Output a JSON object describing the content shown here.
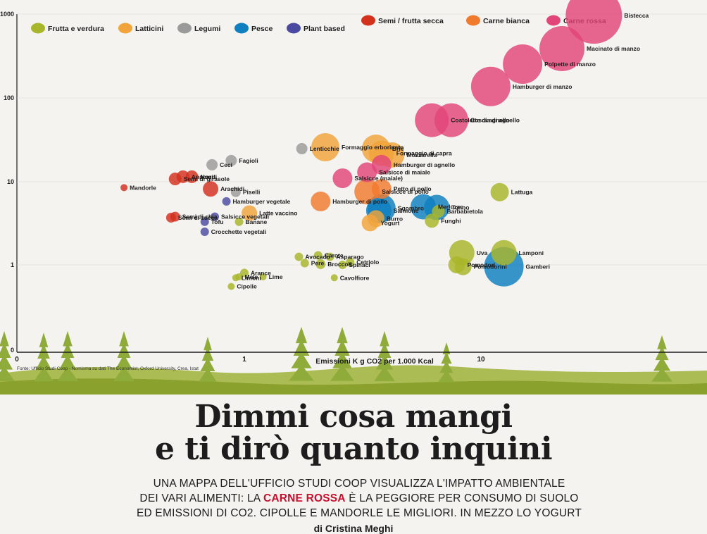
{
  "chart_data": {
    "type": "scatter",
    "title": "",
    "xlabel": "Emissioni K g CO2 per 1.000 Kcal",
    "ylabel": "",
    "xscale": "log",
    "yscale": "log",
    "x_ticks": [
      "0",
      "1",
      "10"
    ],
    "y_ticks": [
      "0",
      "1",
      "10",
      "100",
      "1000"
    ],
    "source": "Fonte: Ufficio Studi Coop - Nomisma su dati The Economist, Oxford University, Crea, Istat",
    "legend_position": "top",
    "categories": [
      {
        "id": "frutta",
        "name": "Frutta e verdura",
        "color": "#a8b62a"
      },
      {
        "id": "latticini",
        "name": "Latticini",
        "color": "#f0a43a"
      },
      {
        "id": "legumi",
        "name": "Legumi",
        "color": "#9a9a9a"
      },
      {
        "id": "pesce",
        "name": "Pesce",
        "color": "#0e7fbf"
      },
      {
        "id": "plant",
        "name": "Plant based",
        "color": "#4a4aa0"
      },
      {
        "id": "semi",
        "name": "Semi / frutta secca",
        "color": "#d3301e"
      },
      {
        "id": "bianca",
        "name": "Carne bianca",
        "color": "#f07a2e"
      },
      {
        "id": "rossa",
        "name": "Carne rossa",
        "color": "#e2457a"
      }
    ],
    "points": [
      {
        "label": "Bistecca",
        "cat": "rossa",
        "x": 30,
        "y": 1000,
        "size": 40
      },
      {
        "label": "Macinato di manzo",
        "cat": "rossa",
        "x": 22,
        "y": 400,
        "size": 32
      },
      {
        "label": "Polpette di manzo",
        "cat": "rossa",
        "x": 15,
        "y": 260,
        "size": 28
      },
      {
        "label": "Hamburger di manzo",
        "cat": "rossa",
        "x": 11,
        "y": 140,
        "size": 28
      },
      {
        "label": "Coscia di agnello",
        "cat": "rossa",
        "x": 7.5,
        "y": 55,
        "size": 24
      },
      {
        "label": "Costolette di agnello",
        "cat": "rossa",
        "x": 6.2,
        "y": 55,
        "size": 24
      },
      {
        "label": "Hamburger di agnello",
        "cat": "rossa",
        "x": 3.8,
        "y": 16,
        "size": 14
      },
      {
        "label": "Salsicce di maiale",
        "cat": "rossa",
        "x": 3.3,
        "y": 13,
        "size": 14
      },
      {
        "label": "Salsicce (maiale)",
        "cat": "rossa",
        "x": 2.6,
        "y": 11,
        "size": 14
      },
      {
        "label": "Formaggio erborinato",
        "cat": "latticini",
        "x": 2.2,
        "y": 26,
        "size": 20
      },
      {
        "label": "Brie",
        "cat": "latticini",
        "x": 3.6,
        "y": 25,
        "size": 20
      },
      {
        "label": "Formaggio di capra",
        "cat": "latticini",
        "x": 3.8,
        "y": 22,
        "size": 18
      },
      {
        "label": "Mozzarella",
        "cat": "latticini",
        "x": 4.2,
        "y": 21,
        "size": 18
      },
      {
        "label": "Latte vaccino",
        "cat": "latticini",
        "x": 1.05,
        "y": 4.2,
        "size": 11
      },
      {
        "label": "Yogurt",
        "cat": "latticini",
        "x": 3.4,
        "y": 3.2,
        "size": 12
      },
      {
        "label": "Burro",
        "cat": "latticini",
        "x": 3.6,
        "y": 3.6,
        "size": 12
      },
      {
        "label": "Salsicce di pollo",
        "cat": "bianca",
        "x": 3.3,
        "y": 7.6,
        "size": 18
      },
      {
        "label": "Petto di pollo",
        "cat": "bianca",
        "x": 3.8,
        "y": 8.2,
        "size": 14
      },
      {
        "label": "Hamburger di pollo",
        "cat": "bianca",
        "x": 2.1,
        "y": 5.8,
        "size": 14
      },
      {
        "label": "Sgombro",
        "cat": "pesce",
        "x": 3.8,
        "y": 4.8,
        "size": 20
      },
      {
        "label": "Salmone",
        "cat": "pesce",
        "x": 3.7,
        "y": 4.5,
        "size": 18
      },
      {
        "label": "Merluzzo",
        "cat": "pesce",
        "x": 5.7,
        "y": 5.0,
        "size": 18
      },
      {
        "label": "Tonno",
        "cat": "pesce",
        "x": 6.5,
        "y": 4.9,
        "size": 18
      },
      {
        "label": "Gamberi",
        "cat": "pesce",
        "x": 12.5,
        "y": 0.95,
        "size": 28
      },
      {
        "label": "Lenticchie",
        "cat": "legumi",
        "x": 1.75,
        "y": 25,
        "size": 8
      },
      {
        "label": "Ceci",
        "cat": "legumi",
        "x": 0.73,
        "y": 16,
        "size": 8
      },
      {
        "label": "Fagioli",
        "cat": "legumi",
        "x": 0.88,
        "y": 18,
        "size": 8
      },
      {
        "label": "Piselli",
        "cat": "legumi",
        "x": 0.92,
        "y": 7.5,
        "size": 7
      },
      {
        "label": "Hamburger vegetale",
        "cat": "plant",
        "x": 0.84,
        "y": 5.8,
        "size": 6
      },
      {
        "label": "Salsicce vegetali",
        "cat": "plant",
        "x": 0.75,
        "y": 3.8,
        "size": 6
      },
      {
        "label": "Tofu",
        "cat": "plant",
        "x": 0.68,
        "y": 3.3,
        "size": 6
      },
      {
        "label": "Crocchette vegetali",
        "cat": "plant",
        "x": 0.68,
        "y": 2.5,
        "size": 6
      },
      {
        "label": "Anacardi",
        "cat": "semi",
        "x": 0.55,
        "y": 11.5,
        "size": 9
      },
      {
        "label": "Noci",
        "cat": "semi",
        "x": 0.6,
        "y": 11.5,
        "size": 9
      },
      {
        "label": "Semi di girasole",
        "cat": "semi",
        "x": 0.51,
        "y": 10.8,
        "size": 9
      },
      {
        "label": "Arachidi",
        "cat": "semi",
        "x": 0.72,
        "y": 8.2,
        "size": 11
      },
      {
        "label": "Semi di chia",
        "cat": "semi",
        "x": 0.51,
        "y": 3.8,
        "size": 7
      },
      {
        "label": "Semi di zucca",
        "cat": "semi",
        "x": 0.49,
        "y": 3.7,
        "size": 7
      },
      {
        "label": "Mandorle",
        "cat": "semi",
        "x": 0.31,
        "y": 8.5,
        "size": 5
      },
      {
        "label": "Lattuga",
        "cat": "frutta",
        "x": 12,
        "y": 7.5,
        "size": 13
      },
      {
        "label": "Funghi",
        "cat": "frutta",
        "x": 6.2,
        "y": 3.4,
        "size": 10
      },
      {
        "label": "Barbabietola",
        "cat": "frutta",
        "x": 6.6,
        "y": 4.4,
        "size": 9
      },
      {
        "label": "Uva",
        "cat": "frutta",
        "x": 8.3,
        "y": 1.4,
        "size": 18
      },
      {
        "label": "Lamponi",
        "cat": "frutta",
        "x": 12.5,
        "y": 1.4,
        "size": 18
      },
      {
        "label": "Pomodori",
        "cat": "frutta",
        "x": 7.9,
        "y": 1.0,
        "size": 12
      },
      {
        "label": "Pomodorini",
        "cat": "frutta",
        "x": 8.4,
        "y": 0.95,
        "size": 12
      },
      {
        "label": "Banane",
        "cat": "frutta",
        "x": 0.95,
        "y": 3.3,
        "size": 6
      },
      {
        "label": "Avocado",
        "cat": "frutta",
        "x": 1.7,
        "y": 1.25,
        "size": 6
      },
      {
        "label": "Carote",
        "cat": "frutta",
        "x": 2.05,
        "y": 1.3,
        "size": 6
      },
      {
        "label": "Asparago",
        "cat": "frutta",
        "x": 2.3,
        "y": 1.25,
        "size": 6
      },
      {
        "label": "Pere",
        "cat": "frutta",
        "x": 1.8,
        "y": 1.05,
        "size": 6
      },
      {
        "label": "Broccoli",
        "cat": "frutta",
        "x": 2.1,
        "y": 1.02,
        "size": 7
      },
      {
        "label": "Spinaci",
        "cat": "frutta",
        "x": 2.6,
        "y": 1.0,
        "size": 6
      },
      {
        "label": "Cetriolo",
        "cat": "frutta",
        "x": 2.8,
        "y": 1.08,
        "size": 6
      },
      {
        "label": "Cavolfiore",
        "cat": "frutta",
        "x": 2.4,
        "y": 0.7,
        "size": 5
      },
      {
        "label": "Arance",
        "cat": "frutta",
        "x": 1.0,
        "y": 0.8,
        "size": 6
      },
      {
        "label": "Mele",
        "cat": "frutta",
        "x": 0.95,
        "y": 0.72,
        "size": 5
      },
      {
        "label": "Limoni",
        "cat": "frutta",
        "x": 0.92,
        "y": 0.7,
        "size": 5
      },
      {
        "label": "Lime",
        "cat": "frutta",
        "x": 1.2,
        "y": 0.72,
        "size": 5
      },
      {
        "label": "Cipolle",
        "cat": "frutta",
        "x": 0.88,
        "y": 0.55,
        "size": 5
      }
    ]
  },
  "article": {
    "headline_1": "Dimmi cosa mangi",
    "headline_2": "e ti dirò quanto inquini",
    "sub_1": "UNA MAPPA DELL'UFFICIO STUDI COOP VISUALIZZA L'IMPATTO AMBIENTALE",
    "sub_2_pre": "DEI VARI ALIMENTI: LA ",
    "sub_2_red": "CARNE ROSSA",
    "sub_2_post": " È LA PEGGIORE PER CONSUMO DI SUOLO",
    "sub_3": "ED EMISSIONI DI CO2. CIPOLLE E MANDORLE LE MIGLIORI. IN MEZZO LO YOGURT",
    "byline": "di Cristina Meghi"
  }
}
